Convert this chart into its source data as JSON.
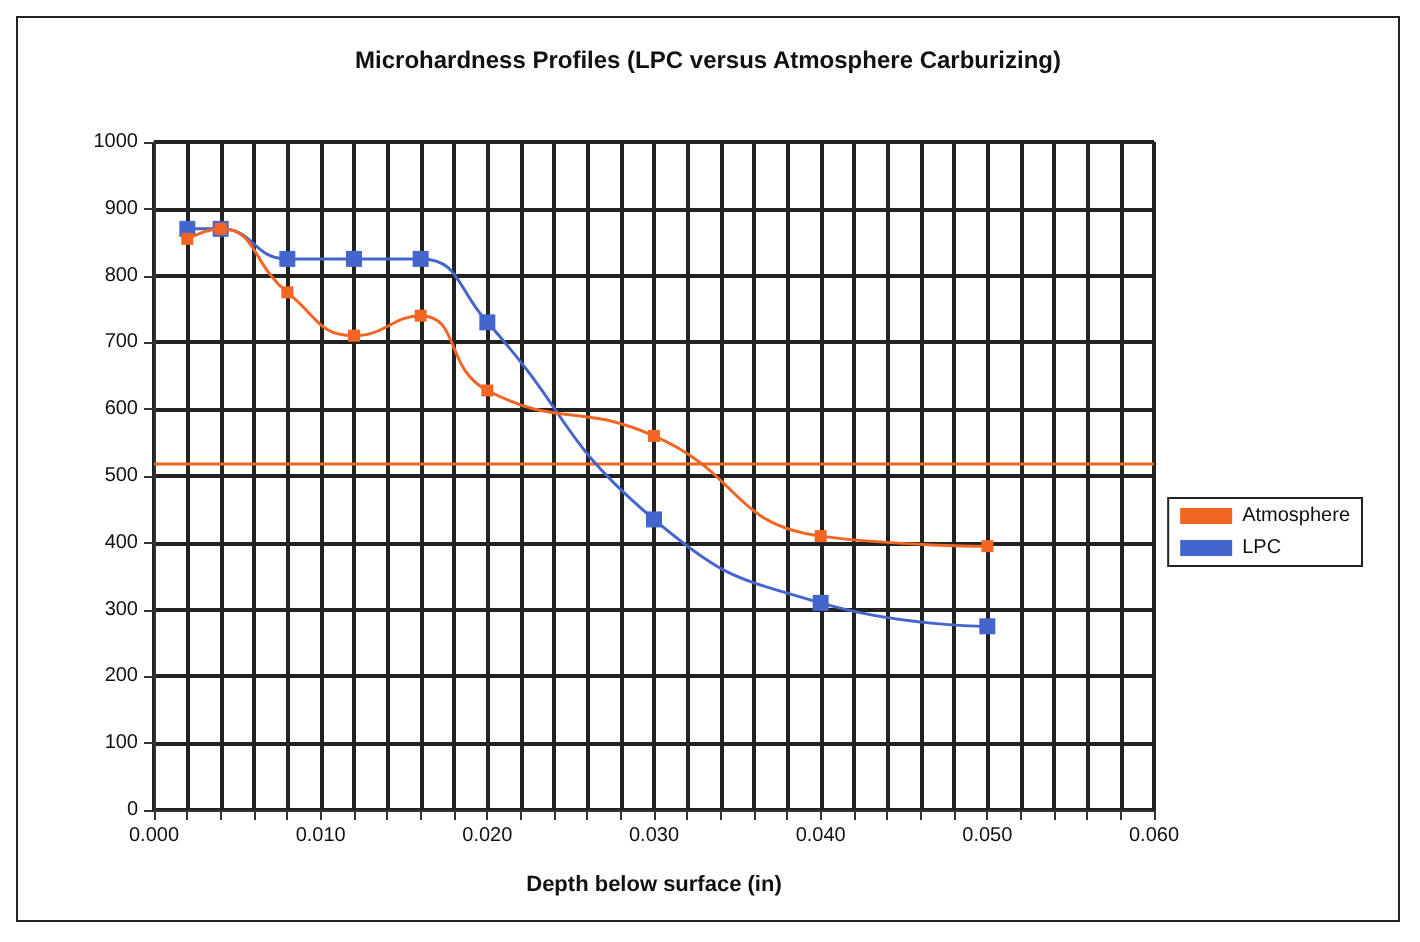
{
  "chart_data": {
    "type": "line",
    "title": "Microhardness Profiles (LPC versus Atmosphere Carburizing)",
    "xlabel": "Depth below surface (in)",
    "x": [
      0.002,
      0.004,
      0.008,
      0.012,
      0.016,
      0.02,
      0.03,
      0.04,
      0.05
    ],
    "series": [
      {
        "name": "Atmosphere",
        "color": "#f26522",
        "values": [
          855,
          870,
          775,
          710,
          740,
          628,
          560,
          410,
          395
        ]
      },
      {
        "name": "LPC",
        "color": "#4466cc",
        "values": [
          870,
          870,
          825,
          825,
          825,
          730,
          435,
          310,
          275
        ]
      }
    ],
    "xlim": [
      0,
      0.06
    ],
    "xticks": [
      {
        "value": 0,
        "label": "0.000"
      },
      {
        "value": 0.002,
        "label": null
      },
      {
        "value": 0.004,
        "label": null
      },
      {
        "value": 0.006,
        "label": null
      },
      {
        "value": 0.008,
        "label": null
      },
      {
        "value": 0.01,
        "label": "0.010"
      },
      {
        "value": 0.012,
        "label": null
      },
      {
        "value": 0.014,
        "label": null
      },
      {
        "value": 0.016,
        "label": null
      },
      {
        "value": 0.018,
        "label": null
      },
      {
        "value": 0.02,
        "label": "0.020"
      },
      {
        "value": 0.022,
        "label": null
      },
      {
        "value": 0.024,
        "label": null
      },
      {
        "value": 0.026,
        "label": null
      },
      {
        "value": 0.028,
        "label": null
      },
      {
        "value": 0.03,
        "label": "0.030"
      },
      {
        "value": 0.032,
        "label": null
      },
      {
        "value": 0.034,
        "label": null
      },
      {
        "value": 0.036,
        "label": null
      },
      {
        "value": 0.038,
        "label": null
      },
      {
        "value": 0.04,
        "label": "0.040"
      },
      {
        "value": 0.042,
        "label": null
      },
      {
        "value": 0.044,
        "label": null
      },
      {
        "value": 0.046,
        "label": null
      },
      {
        "value": 0.048,
        "label": null
      },
      {
        "value": 0.05,
        "label": "0.050"
      },
      {
        "value": 0.052,
        "label": null
      },
      {
        "value": 0.054,
        "label": null
      },
      {
        "value": 0.056,
        "label": null
      },
      {
        "value": 0.058,
        "label": null
      },
      {
        "value": 0.06,
        "label": "0.060"
      }
    ],
    "ylim": [
      0,
      1000
    ],
    "yticks": [
      0,
      100,
      200,
      300,
      400,
      500,
      600,
      700,
      800,
      900,
      1000
    ],
    "ref_lines": [
      {
        "axis": "y",
        "value": 520,
        "color": "#f26522"
      }
    ],
    "grid": true,
    "legend": "right",
    "marker": "square",
    "line_style": "solid"
  }
}
